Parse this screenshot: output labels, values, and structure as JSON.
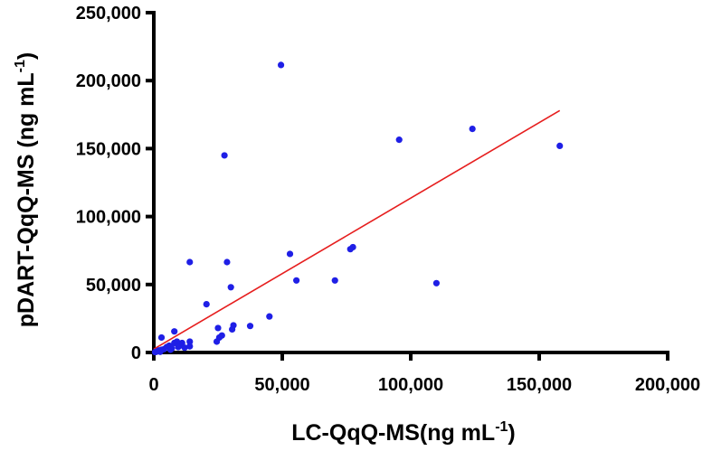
{
  "chart_data": {
    "type": "scatter",
    "xlabel": "LC-QqQ-MS(ng mL",
    "xlabel_sup": "-1",
    "xlabel_close": ")",
    "ylabel": "pDART-QqQ-MS (ng mL",
    "ylabel_sup": "-1",
    "ylabel_close": ")",
    "xlim": [
      0,
      200000
    ],
    "ylim": [
      0,
      250000
    ],
    "x_ticks": [
      0,
      50000,
      100000,
      150000,
      200000
    ],
    "x_tick_labels": [
      "0",
      "50,000",
      "100,000",
      "150,000",
      "200,000"
    ],
    "y_ticks": [
      0,
      50000,
      100000,
      150000,
      200000,
      250000
    ],
    "y_tick_labels": [
      "0",
      "50,000",
      "100,000",
      "150,000",
      "200,000",
      "250,000"
    ],
    "grid": false,
    "point_color": "#1f1fe6",
    "line_color": "#e61e1e",
    "points": [
      [
        49500,
        211500
      ],
      [
        124000,
        164500
      ],
      [
        95500,
        156500
      ],
      [
        158000,
        152000
      ],
      [
        27500,
        145000
      ],
      [
        77500,
        77500
      ],
      [
        76500,
        76000
      ],
      [
        53000,
        72500
      ],
      [
        14000,
        66500
      ],
      [
        28500,
        66500
      ],
      [
        55500,
        53000
      ],
      [
        70500,
        53000
      ],
      [
        110000,
        51000
      ],
      [
        30000,
        48000
      ],
      [
        20500,
        35500
      ],
      [
        45000,
        26500
      ],
      [
        37500,
        19500
      ],
      [
        31000,
        20000
      ],
      [
        30500,
        17000
      ],
      [
        25000,
        18000
      ],
      [
        26500,
        12500
      ],
      [
        25500,
        11000
      ],
      [
        24500,
        8000
      ],
      [
        8000,
        15500
      ],
      [
        3000,
        11000
      ],
      [
        14000,
        8000
      ],
      [
        11000,
        7000
      ],
      [
        9000,
        8000
      ],
      [
        8000,
        7000
      ],
      [
        10000,
        5000
      ],
      [
        6000,
        5000
      ],
      [
        7000,
        3000
      ],
      [
        5000,
        4000
      ],
      [
        4000,
        2500
      ],
      [
        3000,
        2000
      ],
      [
        2000,
        1500
      ],
      [
        1500,
        1000
      ],
      [
        1000,
        500
      ],
      [
        500,
        300
      ],
      [
        12000,
        3500
      ],
      [
        14000,
        4500
      ],
      [
        6500,
        2000
      ],
      [
        2500,
        500
      ],
      [
        9500,
        4000
      ]
    ],
    "regression_line": {
      "x": [
        0,
        158000
      ],
      "y": [
        2500,
        178000
      ]
    }
  }
}
